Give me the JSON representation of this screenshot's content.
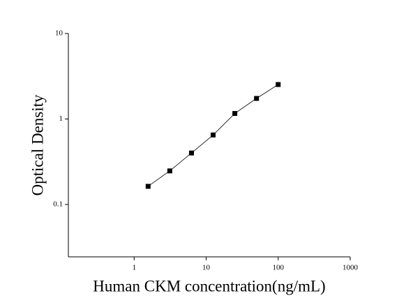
{
  "chart_data": {
    "type": "scatter",
    "x_label": "Human CKM concentration(ng/mL)",
    "y_label": "Optical Density",
    "x": [
      1.5625,
      3.125,
      6.25,
      12.5,
      25,
      50,
      100
    ],
    "series": [
      {
        "color": "#000000",
        "values": [
          0.163,
          0.247,
          0.4,
          0.65,
          1.16,
          1.74,
          2.53
        ]
      }
    ],
    "connect_points": true,
    "x_log": true,
    "y_log": true,
    "xlim": [
      0.122,
      1000
    ],
    "ylim": [
      0.0244,
      10
    ],
    "xticks": [
      1,
      10,
      100,
      1000
    ],
    "yticks": [
      0.1,
      1,
      10
    ]
  }
}
